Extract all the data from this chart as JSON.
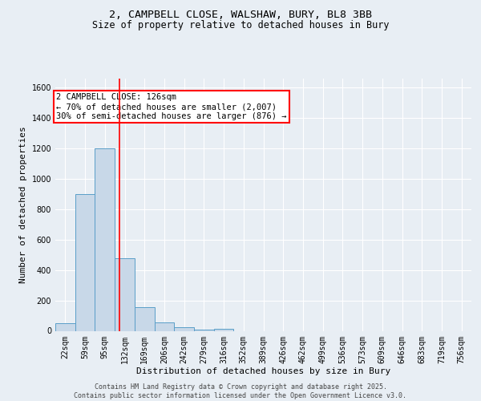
{
  "title_line1": "2, CAMPBELL CLOSE, WALSHAW, BURY, BL8 3BB",
  "title_line2": "Size of property relative to detached houses in Bury",
  "xlabel": "Distribution of detached houses by size in Bury",
  "ylabel": "Number of detached properties",
  "bins": [
    "22sqm",
    "59sqm",
    "95sqm",
    "132sqm",
    "169sqm",
    "206sqm",
    "242sqm",
    "279sqm",
    "316sqm",
    "352sqm",
    "389sqm",
    "426sqm",
    "462sqm",
    "499sqm",
    "536sqm",
    "573sqm",
    "609sqm",
    "646sqm",
    "683sqm",
    "719sqm",
    "756sqm"
  ],
  "bar_heights": [
    50,
    900,
    1200,
    475,
    155,
    55,
    25,
    10,
    15,
    0,
    0,
    0,
    0,
    0,
    0,
    0,
    0,
    0,
    0,
    0,
    0
  ],
  "bar_color": "#c8d8e8",
  "bar_edge_color": "#5a9ec8",
  "red_line_bin_index": 2.72,
  "annotation_text": "2 CAMPBELL CLOSE: 126sqm\n← 70% of detached houses are smaller (2,007)\n30% of semi-detached houses are larger (876) →",
  "annotation_box_color": "white",
  "annotation_box_edge_color": "red",
  "ylim": [
    0,
    1660
  ],
  "background_color": "#e8eef4",
  "grid_color": "white",
  "footer_line1": "Contains HM Land Registry data © Crown copyright and database right 2025.",
  "footer_line2": "Contains public sector information licensed under the Open Government Licence v3.0.",
  "title_fontsize": 9.5,
  "subtitle_fontsize": 8.5,
  "axis_label_fontsize": 8,
  "tick_fontsize": 7,
  "annotation_fontsize": 7.5,
  "footer_fontsize": 6
}
